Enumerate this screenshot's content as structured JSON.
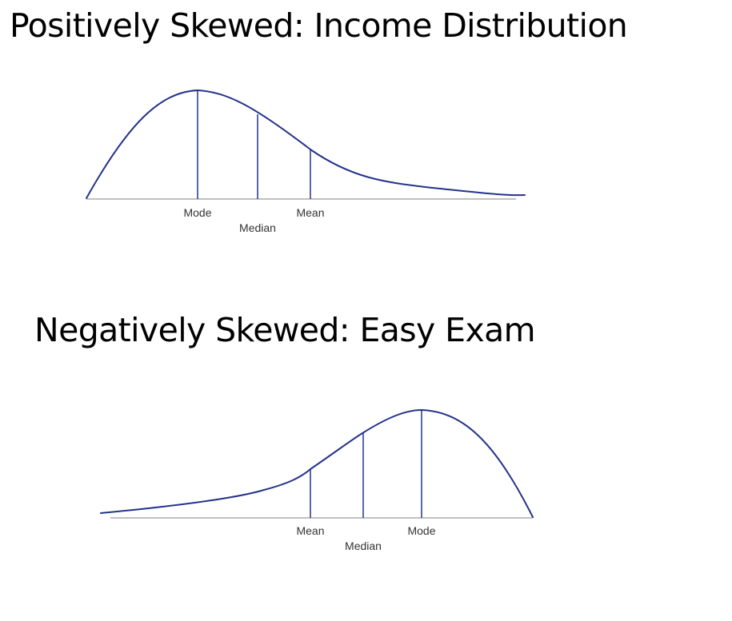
{
  "colors": {
    "curve": "#24338a",
    "baseline": "#9a9a9a",
    "label": "#333333",
    "title": "#000000"
  },
  "diagrams": [
    {
      "title": "Positively Skewed: Income Distribution",
      "skew": "positive",
      "markers": [
        {
          "label": "Mode"
        },
        {
          "label": "Median"
        },
        {
          "label": "Mean"
        }
      ]
    },
    {
      "title": "Negatively Skewed: Easy Exam",
      "skew": "negative",
      "markers": [
        {
          "label": "Mean"
        },
        {
          "label": "Median"
        },
        {
          "label": "Mode"
        }
      ]
    }
  ]
}
